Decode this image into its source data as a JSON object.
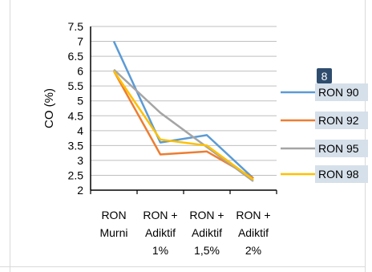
{
  "chart_data": {
    "type": "line",
    "title": "",
    "xlabel": "",
    "ylabel": "CO (%)",
    "ylim": [
      2,
      7.5
    ],
    "yticks": [
      "7.5",
      "7",
      "6.5",
      "6",
      "5.5",
      "5",
      "4.5",
      "4",
      "3.5",
      "3",
      "2.5",
      "2"
    ],
    "categories": [
      [
        "RON",
        "Murni"
      ],
      [
        "RON +",
        "Adiktif",
        "1%"
      ],
      [
        "RON +",
        "Adiktif",
        "1,5%"
      ],
      [
        "RON +",
        "Adiktif",
        "2%"
      ]
    ],
    "grid": true,
    "legend_position": "right",
    "series": [
      {
        "name": "RON 90",
        "color": "#5b9bd5",
        "values": [
          7.0,
          3.6,
          3.85,
          2.4
        ]
      },
      {
        "name": "RON 92",
        "color": "#ed7d31",
        "values": [
          6.0,
          3.2,
          3.3,
          2.4
        ]
      },
      {
        "name": "RON 95",
        "color": "#a5a5a5",
        "values": [
          6.05,
          4.6,
          3.45,
          2.3
        ]
      },
      {
        "name": "RON 98",
        "color": "#ffc000",
        "values": [
          6.0,
          3.7,
          3.5,
          2.35
        ]
      }
    ],
    "badge": "8",
    "badge_color": "#2e4d6e",
    "legend_highlight_color": "#d6e0ea"
  }
}
